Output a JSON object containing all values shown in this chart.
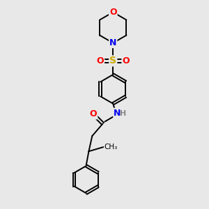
{
  "background_color": "#e8e8e8",
  "bond_color": "#000000",
  "atom_colors": {
    "O": "#ff0000",
    "N": "#0000ee",
    "S": "#ccaa00",
    "H": "#888888",
    "C": "#000000"
  },
  "figsize": [
    3.0,
    3.0
  ],
  "dpi": 100,
  "xlim": [
    0,
    10
  ],
  "ylim": [
    0,
    12
  ]
}
